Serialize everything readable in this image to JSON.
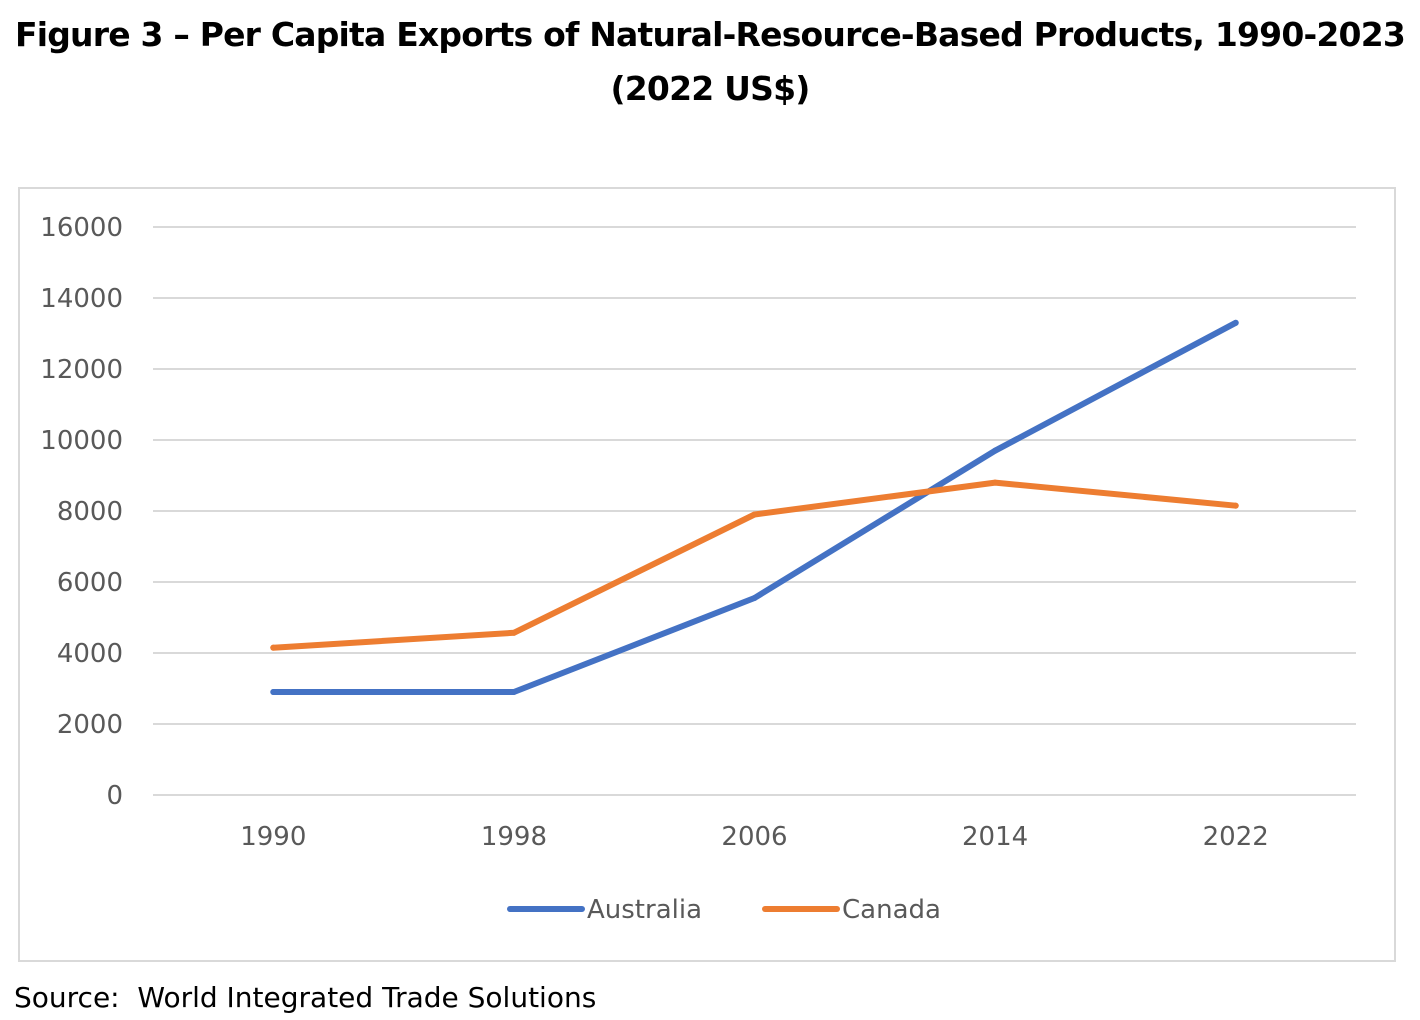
{
  "figure": {
    "title_line1": "Figure 3 – Per Capita Exports of Natural-Resource-Based Products, 1990-2023",
    "title_line2": "(2022 US$)",
    "source": "Source:  World Integrated Trade Solutions"
  },
  "chart_data": {
    "type": "line",
    "title": "Figure 3 – Per Capita Exports of Natural-Resource-Based Products, 1990-2023 (2022 US$)",
    "xlabel": "",
    "ylabel": "",
    "categories": [
      "1990",
      "1998",
      "2006",
      "2014",
      "2022"
    ],
    "ylim": [
      0,
      16000
    ],
    "yticks": [
      0,
      2000,
      4000,
      6000,
      8000,
      10000,
      12000,
      14000,
      16000
    ],
    "grid": true,
    "legend_position": "bottom",
    "series": [
      {
        "name": "Australia",
        "color": "#4472c4",
        "values": [
          2900,
          2900,
          5550,
          9700,
          13300
        ]
      },
      {
        "name": "Canada",
        "color": "#ed7d31",
        "values": [
          4150,
          4570,
          7900,
          8800,
          8150
        ]
      }
    ]
  }
}
